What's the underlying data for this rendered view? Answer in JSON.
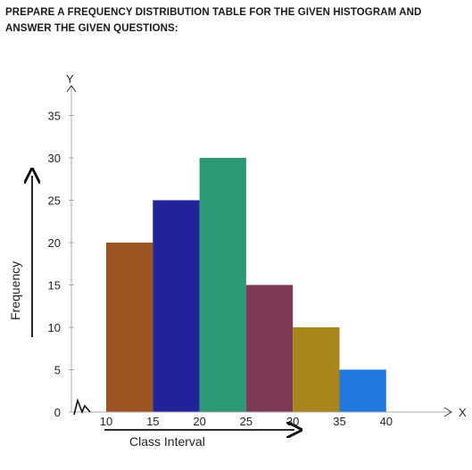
{
  "header": {
    "instruction": "PREPARE A FREQUENCY DISTRIBUTION TABLE FOR THE GIVEN HISTOGRAM AND ANSWER THE GIVEN QUESTIONS:"
  },
  "chart_data": {
    "type": "bar",
    "subtype": "histogram",
    "title": "",
    "xlabel": "Class Interval",
    "ylabel": "Frequency",
    "x_axis_letter": "X",
    "y_axis_letter": "Y",
    "x_ticks": [
      "10",
      "15",
      "20",
      "25",
      "30",
      "35",
      "40"
    ],
    "y_ticks": [
      "0",
      "5",
      "10",
      "15",
      "20",
      "25",
      "30",
      "35"
    ],
    "ylim": [
      0,
      35
    ],
    "grid": false,
    "legend": "none",
    "bins": [
      {
        "start": 10,
        "end": 15,
        "value": 20,
        "color": "#9b5523"
      },
      {
        "start": 15,
        "end": 20,
        "value": 25,
        "color": "#22229a"
      },
      {
        "start": 20,
        "end": 25,
        "value": 30,
        "color": "#2d9874"
      },
      {
        "start": 25,
        "end": 30,
        "value": 15,
        "color": "#7c3a55"
      },
      {
        "start": 30,
        "end": 35,
        "value": 10,
        "color": "#a8861c"
      },
      {
        "start": 35,
        "end": 40,
        "value": 5,
        "color": "#2178de"
      }
    ]
  }
}
